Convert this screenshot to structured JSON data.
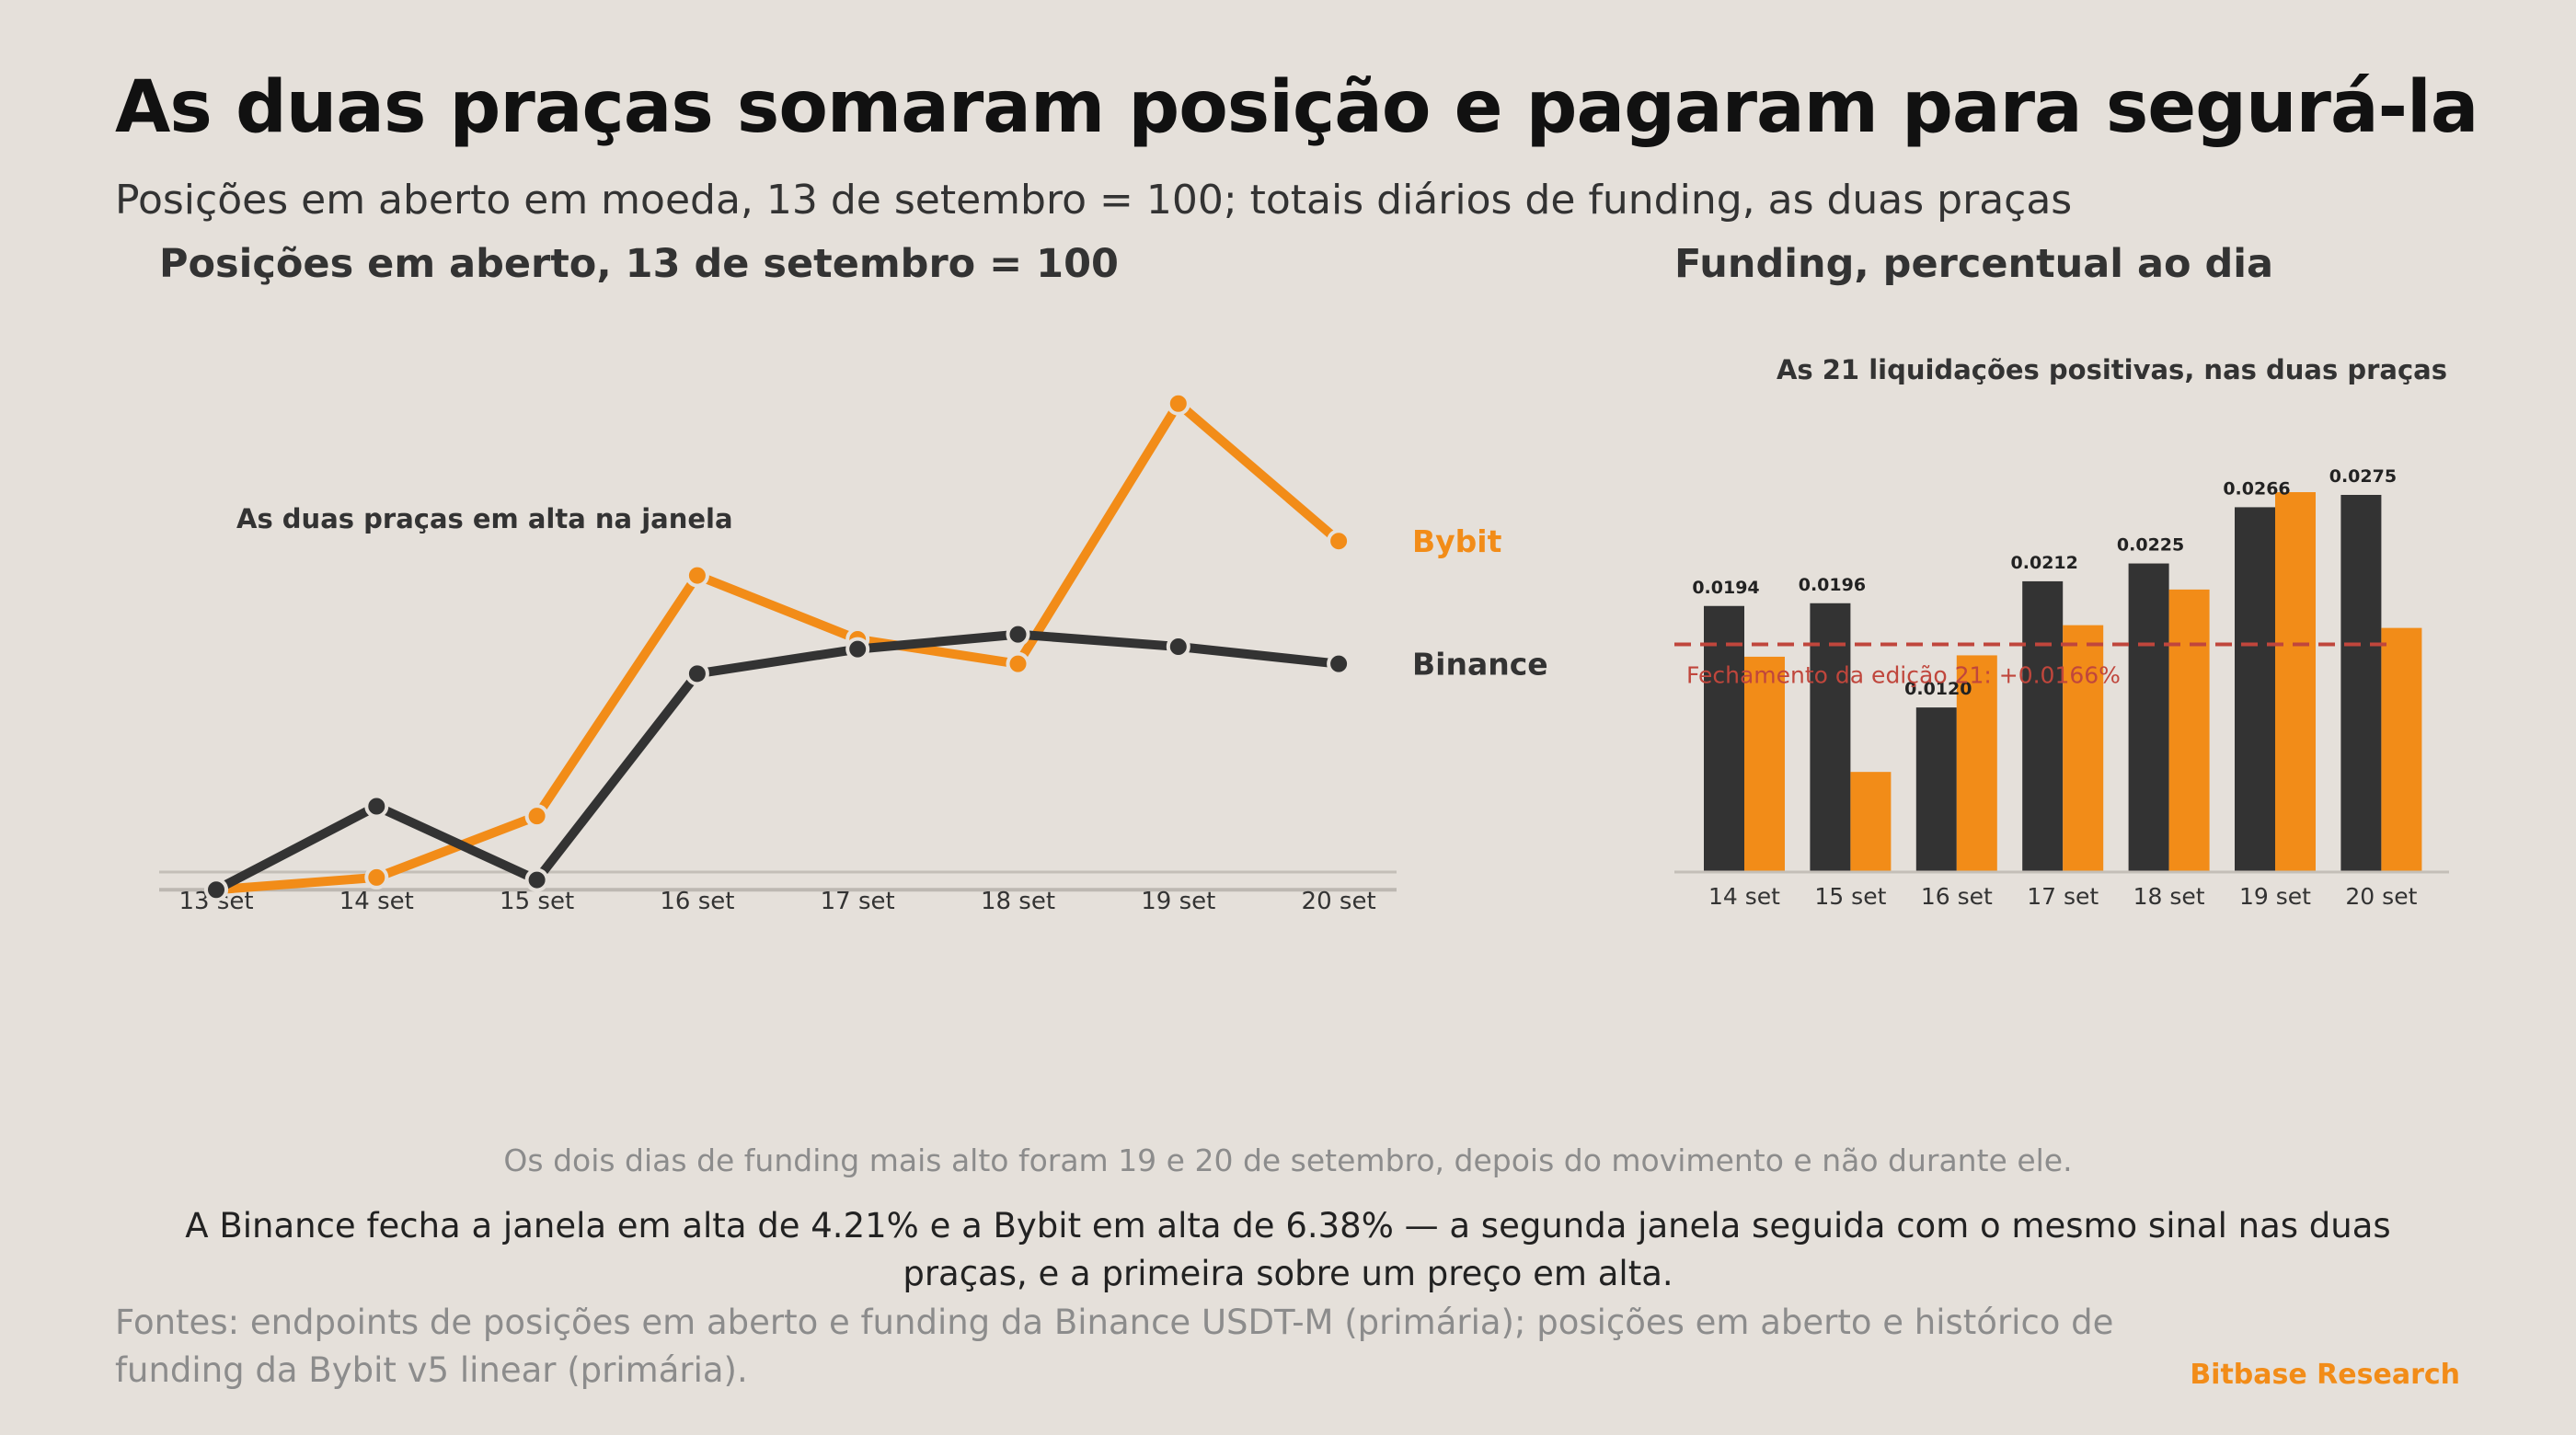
{
  "title": "As duas praças somaram posição e pagaram para segurá-la",
  "subtitle": "Posições em aberto em moeda, 13 de setembro = 100; totais diários de funding, as duas praças",
  "colors": {
    "binance": "#333333",
    "bybit": "#f28c18",
    "reference": "#c0463c",
    "background": "#e5e0da"
  },
  "chart_data": [
    {
      "type": "line",
      "title": "Posições em aberto, 13 de setembro = 100",
      "annotation": "As duas praças em alta na janela",
      "categories": [
        "13 set",
        "14 set",
        "15 set",
        "16 set",
        "17 set",
        "18 set",
        "19 set",
        "20 set"
      ],
      "baseline": 100,
      "series": [
        {
          "name": "Bybit",
          "color": "#f28c18",
          "values": [
            100.0,
            100.5,
            103.0,
            112.8,
            110.2,
            109.2,
            119.8,
            114.2
          ]
        },
        {
          "name": "Binance",
          "color": "#333333",
          "values": [
            100.0,
            103.4,
            100.4,
            108.8,
            109.8,
            110.4,
            109.9,
            109.2
          ]
        }
      ],
      "ylim": [
        96.6,
        121.4
      ]
    },
    {
      "type": "bar",
      "title": "Funding, percentual ao dia",
      "annotation": "As 21 liquidações positivas, nas duas praças",
      "categories": [
        "14 set",
        "15 set",
        "16 set",
        "17 set",
        "18 set",
        "19 set",
        "20 set"
      ],
      "series": [
        {
          "name": "Binance",
          "color": "#333333",
          "values": [
            0.0194,
            0.0196,
            0.012,
            0.0212,
            0.0225,
            0.0266,
            0.0275
          ]
        },
        {
          "name": "Bybit",
          "color": "#f28c18",
          "values": [
            0.0157,
            0.0073,
            0.0158,
            0.018,
            0.0206,
            0.0277,
            0.0178
          ]
        }
      ],
      "labels": [
        "0.0194",
        "0.0196",
        "0.0120",
        "0.0212",
        "0.0225",
        "0.0266",
        "0.0275"
      ],
      "reference": {
        "value": 0.0166,
        "label": "Fechamento da edição 21: +0.0166%"
      },
      "ylim": [
        0,
        0.0285
      ]
    }
  ],
  "notes": {
    "mid": "Os dois dias de funding mais alto foram 19 e 20 de setembro, depois do movimento e não durante ele.",
    "main": "A Binance fecha a janela em alta de 4.21% e a Bybit em alta de 6.38% — a segunda janela seguida com o mesmo sinal nas duas praças, e a primeira sobre um preço em alta.",
    "sources": "Fontes: endpoints de posições em aberto e funding da Binance USDT-M (primária); posições em aberto e histórico de funding da Bybit v5 linear (primária).",
    "brand": "Bitbase Research"
  }
}
